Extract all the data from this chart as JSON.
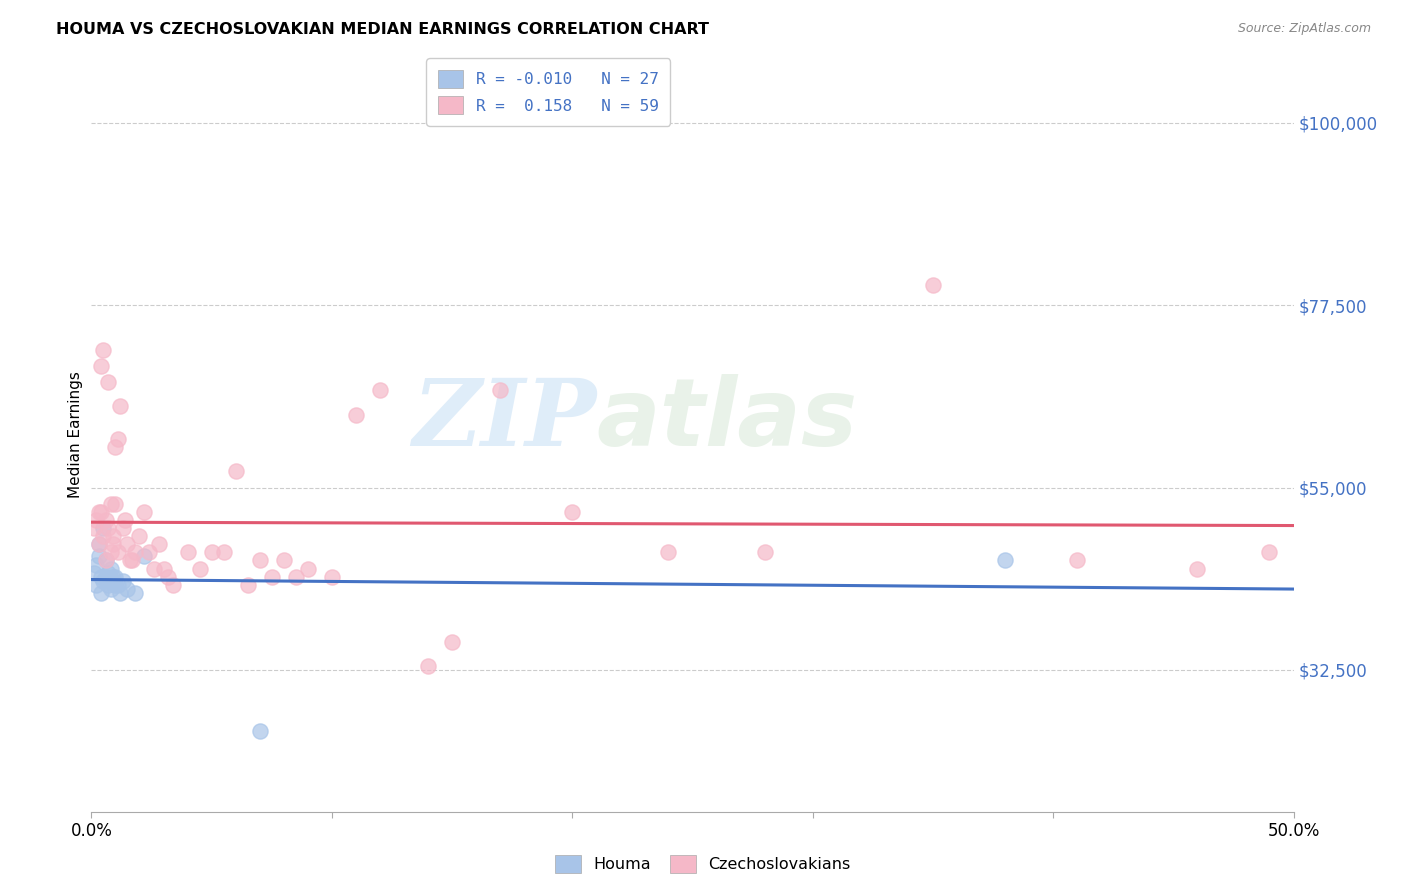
{
  "title": "HOUMA VS CZECHOSLOVAKIAN MEDIAN EARNINGS CORRELATION CHART",
  "source": "Source: ZipAtlas.com",
  "ylabel": "Median Earnings",
  "ytick_labels": [
    "$32,500",
    "$55,000",
    "$77,500",
    "$100,000"
  ],
  "ytick_values": [
    32500,
    55000,
    77500,
    100000
  ],
  "ylim": [
    15000,
    108000
  ],
  "xlim": [
    0.0,
    0.5
  ],
  "houma_color": "#a8c4e8",
  "czech_color": "#f5b8c8",
  "trend_houma_color": "#4472c4",
  "trend_czech_color": "#e05870",
  "background_color": "#ffffff",
  "watermark_zip": "ZIP",
  "watermark_atlas": "atlas",
  "legend_label1": "R = -0.010   N = 27",
  "legend_label2": "R =  0.158   N = 59",
  "bottom_label1": "Houma",
  "bottom_label2": "Czechoslovakians",
  "houma_x": [
    0.001,
    0.002,
    0.002,
    0.003,
    0.003,
    0.004,
    0.004,
    0.005,
    0.005,
    0.006,
    0.006,
    0.007,
    0.007,
    0.008,
    0.008,
    0.009,
    0.009,
    0.01,
    0.01,
    0.011,
    0.012,
    0.013,
    0.015,
    0.018,
    0.022,
    0.38,
    0.07
  ],
  "houma_y": [
    44500,
    43000,
    45500,
    46500,
    48000,
    44000,
    42000,
    50000,
    43500,
    44000,
    46000,
    43000,
    44500,
    42500,
    45000,
    43500,
    44000,
    43000,
    44000,
    43000,
    42000,
    43500,
    42500,
    42000,
    46500,
    46000,
    25000
  ],
  "czech_x": [
    0.001,
    0.002,
    0.003,
    0.003,
    0.004,
    0.004,
    0.005,
    0.005,
    0.006,
    0.006,
    0.007,
    0.007,
    0.008,
    0.008,
    0.009,
    0.009,
    0.01,
    0.01,
    0.011,
    0.011,
    0.012,
    0.013,
    0.014,
    0.015,
    0.016,
    0.017,
    0.018,
    0.02,
    0.022,
    0.024,
    0.026,
    0.028,
    0.03,
    0.032,
    0.034,
    0.04,
    0.045,
    0.05,
    0.055,
    0.06,
    0.065,
    0.07,
    0.075,
    0.08,
    0.085,
    0.09,
    0.1,
    0.11,
    0.12,
    0.14,
    0.15,
    0.17,
    0.2,
    0.24,
    0.28,
    0.35,
    0.41,
    0.46,
    0.49
  ],
  "czech_y": [
    50000,
    51000,
    52000,
    48000,
    70000,
    52000,
    49000,
    72000,
    51000,
    46000,
    68000,
    50000,
    53000,
    47000,
    48000,
    49000,
    60000,
    53000,
    47000,
    61000,
    65000,
    50000,
    51000,
    48000,
    46000,
    46000,
    47000,
    49000,
    52000,
    47000,
    45000,
    48000,
    45000,
    44000,
    43000,
    47000,
    45000,
    47000,
    47000,
    57000,
    43000,
    46000,
    44000,
    46000,
    44000,
    45000,
    44000,
    64000,
    67000,
    33000,
    36000,
    67000,
    52000,
    47000,
    47000,
    80000,
    46000,
    45000,
    47000
  ]
}
